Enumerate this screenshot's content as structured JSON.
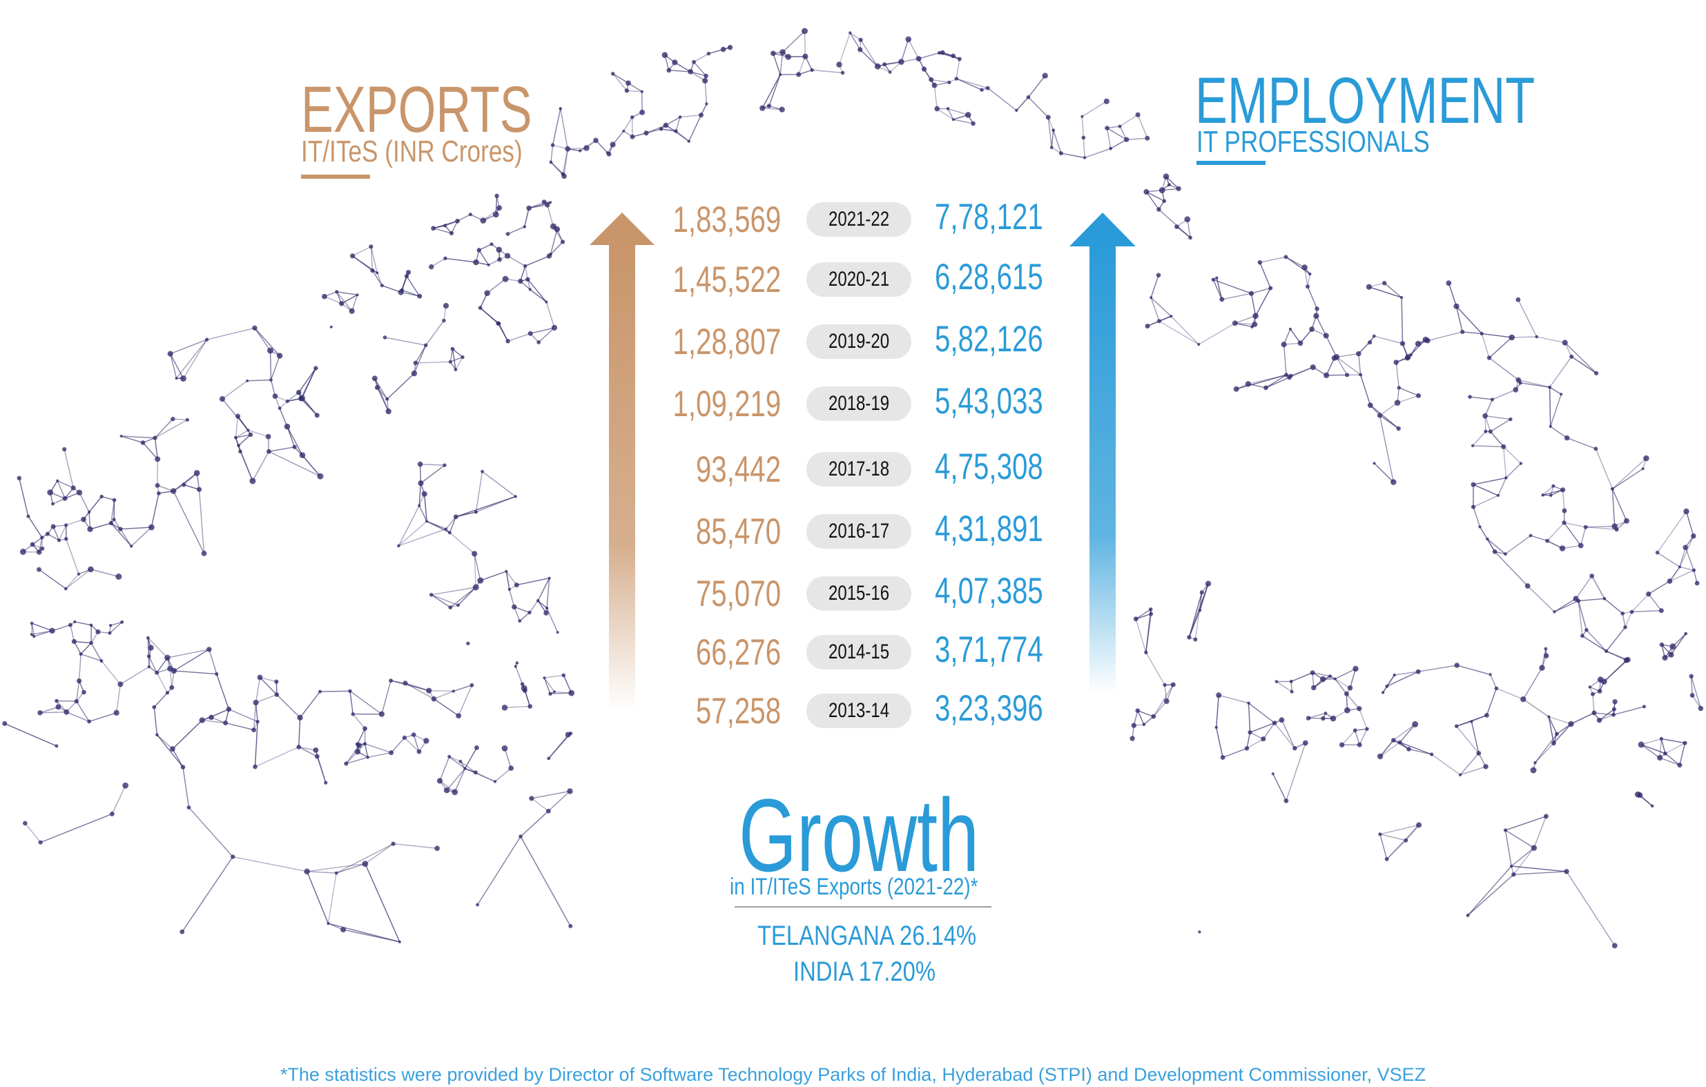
{
  "exports": {
    "title": "EXPORTS",
    "subtitle": "IT/ITeS (INR Crores)",
    "color": "#c9956a"
  },
  "employment": {
    "title": "EMPLOYMENT",
    "subtitle": "IT PROFESSIONALS",
    "color": "#2a9bd8"
  },
  "rows": [
    {
      "year": "2021-22",
      "exports": "1,83,569",
      "employment": "7,78,121"
    },
    {
      "year": "2020-21",
      "exports": "1,45,522",
      "employment": "6,28,615"
    },
    {
      "year": "2019-20",
      "exports": "1,28,807",
      "employment": "5,82,126"
    },
    {
      "year": "2018-19",
      "exports": "1,09,219",
      "employment": "5,43,033"
    },
    {
      "year": "2017-18",
      "exports": "93,442",
      "employment": "4,75,308"
    },
    {
      "year": "2016-17",
      "exports": "85,470",
      "employment": "4,31,891"
    },
    {
      "year": "2015-16",
      "exports": "75,070",
      "employment": "4,07,385"
    },
    {
      "year": "2014-15",
      "exports": "66,276",
      "employment": "3,71,774"
    },
    {
      "year": "2013-14",
      "exports": "57,258",
      "employment": "3,23,396"
    }
  ],
  "growth": {
    "title": "Growth",
    "subtitle": "in IT/ITeS Exports (2021-22)*",
    "telangana": "TELANGANA 26.14%",
    "india": "INDIA 17.20%"
  },
  "footnote": "*The statistics were provided by Director of Software Technology Parks of India, Hyderabad (STPI) and Development Commissioner, VSEZ",
  "mesh_color": "#34306e",
  "icons": [
    "exports-up-arrow-icon",
    "employment-up-arrow-icon",
    "network-hands-illustration"
  ]
}
